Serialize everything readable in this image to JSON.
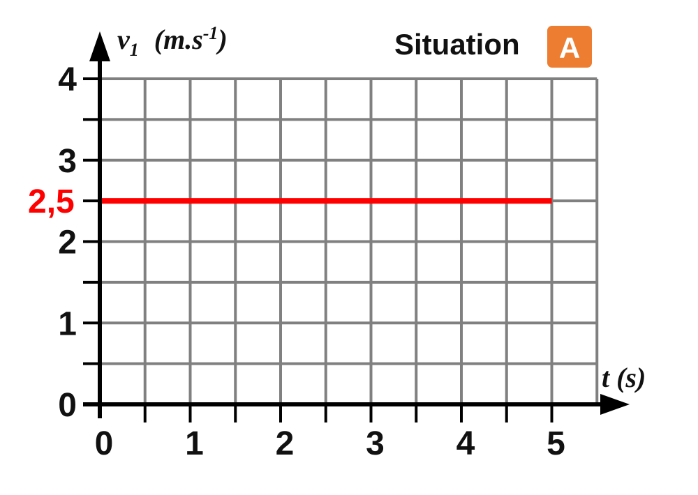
{
  "chart_data": {
    "type": "line",
    "title": "Situation",
    "badge": "A",
    "badge_color": "#ED7D31",
    "ylabel": {
      "symbol": "v",
      "subscript": "1",
      "unit": "(m.s",
      "unit_exp": "-1",
      "unit_close": ")"
    },
    "xlabel": "t (s)",
    "xlim": [
      0,
      5.5
    ],
    "ylim": [
      0,
      4
    ],
    "x_ticks": [
      0,
      1,
      2,
      3,
      4,
      5
    ],
    "x_tick_labels": [
      "0",
      "1",
      "2",
      "3",
      "4",
      "5"
    ],
    "x_minor_step": 0.5,
    "y_ticks": [
      0,
      1,
      2,
      3,
      4
    ],
    "y_tick_labels": [
      "0",
      "1",
      "2",
      "3",
      "4"
    ],
    "y_minor_step": 0.5,
    "grid": true,
    "series": [
      {
        "x": [
          0,
          5
        ],
        "values": [
          2.5,
          2.5
        ],
        "color": "#FF0000"
      }
    ],
    "annotations": [
      {
        "text": "2,5",
        "y": 2.5,
        "color": "#FF0000"
      }
    ]
  }
}
